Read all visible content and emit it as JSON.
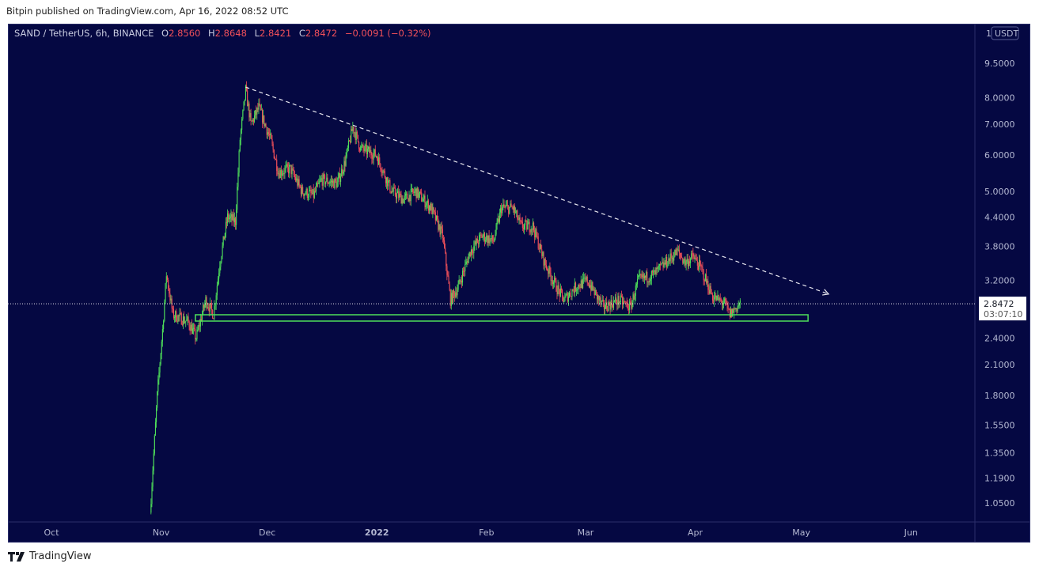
{
  "header": {
    "published": "Bitpin published on TradingView.com, Apr 16, 2022 08:52 UTC"
  },
  "legend": {
    "symbol": "SAND / TetherUS, 6h, BINANCE",
    "o_label": "O",
    "o": "2.8560",
    "h_label": "H",
    "h": "2.8648",
    "l_label": "L",
    "l": "2.8421",
    "c_label": "C",
    "c": "2.8472",
    "change": "−0.0091 (−0.32%)"
  },
  "footer": {
    "brand": "TradingView"
  },
  "colors": {
    "bg": "#050842",
    "up": "#4fe05a",
    "down": "#f0505a",
    "trend": "#e8e8f0",
    "box": "#4fe05a"
  },
  "chart_data": {
    "type": "candlestick",
    "title": "SAND / TetherUS, 6h, BINANCE",
    "yscale": "log",
    "ylim": [
      0.98,
      11.2
    ],
    "xlabel": "",
    "ylabel": "",
    "currency_label": "USDT",
    "currency_prefix": "1",
    "y_ticks": [
      "9.5000",
      "8.0000",
      "7.0000",
      "6.0000",
      "5.0000",
      "4.4000",
      "3.8000",
      "3.2000",
      "2.4000",
      "2.1000",
      "1.8000",
      "1.5500",
      "1.3500",
      "1.1900",
      "1.0500"
    ],
    "x_origin": "2021-10-01",
    "x_ticks": [
      {
        "label": "Oct",
        "day": 0
      },
      {
        "label": "Nov",
        "day": 31
      },
      {
        "label": "Dec",
        "day": 61
      },
      {
        "label": "2022",
        "day": 92
      },
      {
        "label": "Feb",
        "day": 123
      },
      {
        "label": "Mar",
        "day": 151
      },
      {
        "label": "Apr",
        "day": 182
      },
      {
        "label": "May",
        "day": 212
      },
      {
        "label": "Jun",
        "day": 243
      }
    ],
    "last_price": "2.8472",
    "countdown": "03:07:10",
    "price_path": [
      [
        27.9,
        1.0
      ],
      [
        29.9,
        1.8
      ],
      [
        31.4,
        2.5
      ],
      [
        32.5,
        3.3
      ],
      [
        34.3,
        2.7
      ],
      [
        38.7,
        2.6
      ],
      [
        40.9,
        2.4
      ],
      [
        43.6,
        2.9
      ],
      [
        45.8,
        2.7
      ],
      [
        47.6,
        3.5
      ],
      [
        49.8,
        4.4
      ],
      [
        52,
        4.3
      ],
      [
        53.3,
        6.5
      ],
      [
        54.9,
        8.3
      ],
      [
        56.4,
        7.0
      ],
      [
        58.6,
        7.6
      ],
      [
        61.9,
        6.5
      ],
      [
        64.2,
        5.5
      ],
      [
        67.5,
        5.6
      ],
      [
        70.8,
        5.0
      ],
      [
        74.1,
        4.9
      ],
      [
        76.3,
        5.3
      ],
      [
        80.8,
        5.2
      ],
      [
        83,
        5.8
      ],
      [
        85.2,
        6.9
      ],
      [
        87.4,
        6.2
      ],
      [
        91.8,
        6.0
      ],
      [
        96.2,
        5.0
      ],
      [
        99.6,
        4.8
      ],
      [
        102.9,
        5.0
      ],
      [
        107.3,
        4.6
      ],
      [
        110.6,
        4.0
      ],
      [
        112.8,
        2.9
      ],
      [
        115,
        3.1
      ],
      [
        118.4,
        3.7
      ],
      [
        121.7,
        4.0
      ],
      [
        125,
        3.9
      ],
      [
        127.2,
        4.6
      ],
      [
        130.5,
        4.6
      ],
      [
        132.7,
        4.2
      ],
      [
        136.1,
        4.2
      ],
      [
        139.4,
        3.5
      ],
      [
        142.7,
        3.1
      ],
      [
        144.9,
        2.9
      ],
      [
        148.2,
        3.1
      ],
      [
        151.5,
        3.2
      ],
      [
        156,
        2.8
      ],
      [
        160.4,
        2.9
      ],
      [
        163.7,
        2.8
      ],
      [
        165.9,
        3.2
      ],
      [
        170.4,
        3.3
      ],
      [
        173.7,
        3.5
      ],
      [
        177,
        3.7
      ],
      [
        179.2,
        3.5
      ],
      [
        181.4,
        3.6
      ],
      [
        183.6,
        3.4
      ],
      [
        186.9,
        2.95
      ],
      [
        190.3,
        2.85
      ],
      [
        191.8,
        2.7
      ],
      [
        194.7,
        2.85
      ]
    ],
    "trendline": {
      "from": [
        54.9,
        8.43
      ],
      "to": [
        219.7,
        2.99
      ],
      "style": "dashed-arrow"
    },
    "support_zone": {
      "day_from": 40.7,
      "day_to": 213.9,
      "price_low": 2.611,
      "price_high": 2.695
    }
  }
}
